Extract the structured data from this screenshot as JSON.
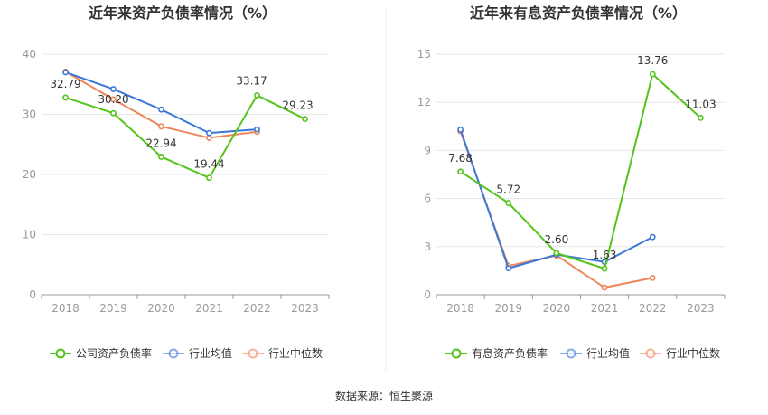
{
  "source_text": "数据来源：恒生聚源",
  "colors": {
    "company": "#52c41a",
    "industry_avg": "#3a78d8",
    "industry_median": "#f0855a",
    "grid": "#e6e6e6",
    "axis": "#999999",
    "divider": "#eeeeee"
  },
  "chart_data": [
    {
      "type": "line",
      "title": "近年来资产负债率情况（%）",
      "categories": [
        "2018",
        "2019",
        "2020",
        "2021",
        "2022",
        "2023"
      ],
      "ylim": [
        0,
        40
      ],
      "yticks": [
        0,
        10,
        20,
        30,
        40
      ],
      "grid": true,
      "legend_position": "bottom",
      "series": [
        {
          "name": "公司资产负债率",
          "color_key": "company",
          "values": [
            32.79,
            30.2,
            22.94,
            19.44,
            33.17,
            29.23
          ],
          "labels": [
            "32.79",
            "30.20",
            "22.94",
            "19.44",
            "33.17",
            "29.23"
          ]
        },
        {
          "name": "行业均值",
          "color_key": "industry_avg",
          "values": [
            37.0,
            34.2,
            30.8,
            26.9,
            27.5,
            null
          ]
        },
        {
          "name": "行业中位数",
          "color_key": "industry_median",
          "values": [
            37.1,
            32.5,
            28.0,
            26.1,
            27.1,
            null
          ]
        }
      ]
    },
    {
      "type": "line",
      "title": "近年来有息资产负债率情况（%）",
      "categories": [
        "2018",
        "2019",
        "2020",
        "2021",
        "2022",
        "2023"
      ],
      "ylim": [
        0,
        15
      ],
      "yticks": [
        0,
        3,
        6,
        9,
        12,
        15
      ],
      "grid": true,
      "legend_position": "bottom",
      "series": [
        {
          "name": "有息资产负债率",
          "color_key": "company",
          "values": [
            7.68,
            5.72,
            2.6,
            1.63,
            13.76,
            11.03
          ],
          "labels": [
            "7.68",
            "5.72",
            "2.60",
            "1.63",
            "13.76",
            "11.03"
          ]
        },
        {
          "name": "行业均值",
          "color_key": "industry_avg",
          "values": [
            10.3,
            1.65,
            2.5,
            2.05,
            3.6,
            null
          ]
        },
        {
          "name": "行业中位数",
          "color_key": "industry_median",
          "values": [
            10.2,
            1.8,
            2.45,
            0.45,
            1.05,
            null
          ]
        }
      ]
    }
  ]
}
